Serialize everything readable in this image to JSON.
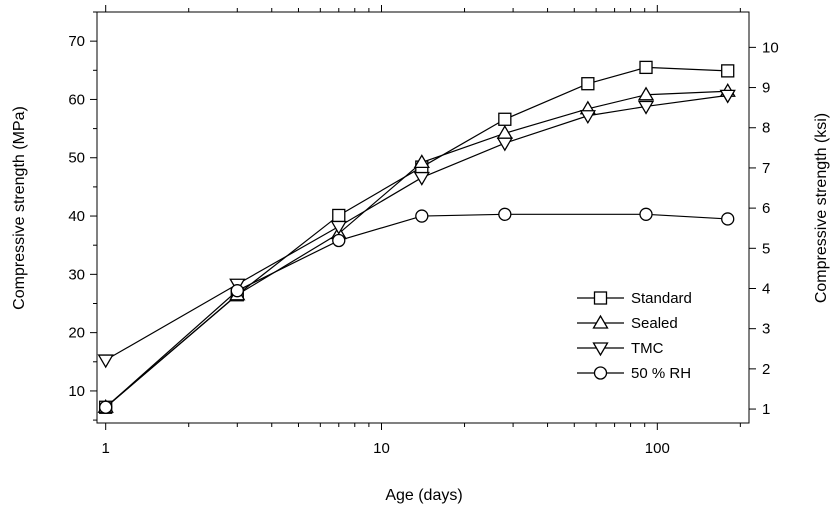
{
  "chart_data": {
    "type": "line",
    "title": "",
    "xlabel": "Age (days)",
    "ylabel": "Compressive strength (MPa)",
    "y2label": "Compressive strength (ksi)",
    "xscale": "log",
    "xlim": [
      0.93,
      215
    ],
    "ylim": [
      4.5,
      75
    ],
    "y2lim": [
      0.653,
      10.88
    ],
    "xticks": [
      1,
      10,
      100
    ],
    "xtick_labels": [
      "1",
      "10",
      "100"
    ],
    "yticks": [
      10,
      20,
      30,
      40,
      50,
      60,
      70
    ],
    "ytick_labels": [
      "10",
      "20",
      "30",
      "40",
      "50",
      "60",
      "70"
    ],
    "y2ticks": [
      1,
      2,
      3,
      4,
      5,
      6,
      7,
      8,
      9,
      10
    ],
    "y2tick_labels": [
      "1",
      "2",
      "3",
      "4",
      "5",
      "6",
      "7",
      "8",
      "9",
      "10"
    ],
    "grid": false,
    "legend_position": "lower-right",
    "series": [
      {
        "name": "Standard",
        "marker": "square",
        "x": [
          1,
          3,
          7,
          14,
          28,
          56,
          91,
          180
        ],
        "values": [
          7.2,
          26.5,
          40.1,
          48.4,
          56.6,
          62.7,
          65.5,
          64.9
        ]
      },
      {
        "name": "Sealed",
        "marker": "triangle-up",
        "x": [
          1,
          3,
          7,
          14,
          28,
          56,
          91,
          180
        ],
        "values": [
          7.2,
          26.5,
          37.0,
          49.2,
          54.2,
          58.4,
          60.8,
          61.4
        ]
      },
      {
        "name": "TMC",
        "marker": "triangle-down",
        "x": [
          1,
          3,
          7,
          14,
          28,
          56,
          91,
          180
        ],
        "values": [
          15.3,
          28.3,
          38.2,
          46.6,
          52.5,
          57.2,
          58.8,
          60.7
        ]
      },
      {
        "name": "50 % RH",
        "marker": "circle",
        "x": [
          1,
          3,
          7,
          14,
          28,
          91,
          180
        ],
        "values": [
          7.2,
          27.2,
          35.8,
          40.0,
          40.3,
          40.3,
          39.5
        ]
      }
    ]
  }
}
